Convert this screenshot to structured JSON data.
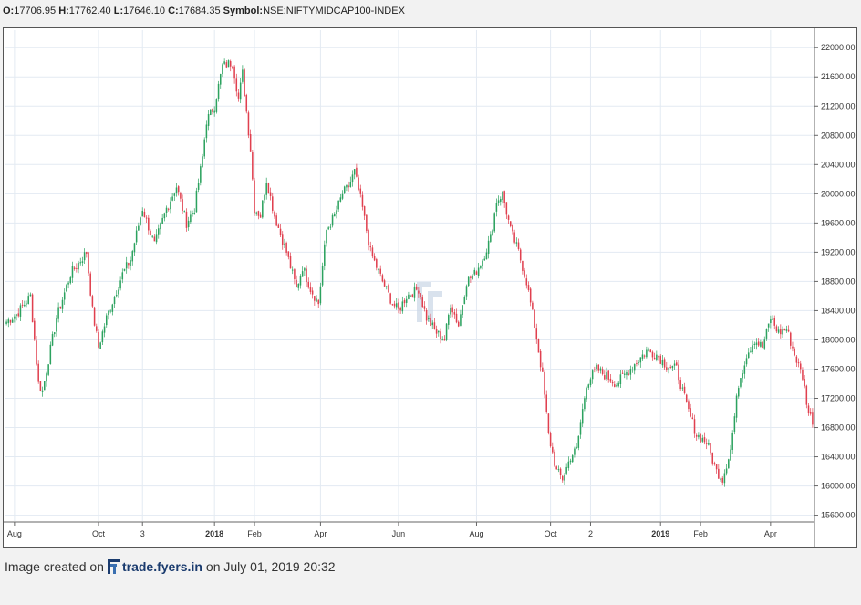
{
  "header": {
    "o_label": "O:",
    "o_value": "17706.95",
    "h_label": "H:",
    "h_value": "17762.40",
    "l_label": "L:",
    "l_value": "17646.10",
    "c_label": "C:",
    "c_value": "17684.35",
    "symbol_label": "Symbol:",
    "symbol_value": "NSE:NIFTYMIDCAP100-INDEX"
  },
  "footer": {
    "prefix": "Image created on",
    "brand": "trade.fyers.in",
    "suffix": "on July 01, 2019 20:32"
  },
  "colors": {
    "up": "#2ca25f",
    "down": "#e0404f",
    "grid": "#e3eaf2",
    "watermark": "#c9d6e6"
  },
  "chart_data": {
    "type": "candlestick",
    "title": "",
    "xlabel": "",
    "ylabel": "",
    "ylim": [
      15520,
      22240
    ],
    "y_ticks": [
      15600,
      16000,
      16400,
      16800,
      17200,
      17600,
      18000,
      18400,
      18800,
      19200,
      19600,
      20000,
      20400,
      20800,
      21200,
      21600,
      22000
    ],
    "y_tick_labels": [
      "15600.00",
      "16000.00",
      "16400.00",
      "16800.00",
      "17200.00",
      "17600.00",
      "18000.00",
      "18400.00",
      "18800.00",
      "19200.00",
      "19600.00",
      "20000.00",
      "20400.00",
      "20800.00",
      "21200.00",
      "21600.00",
      "22000.00"
    ],
    "x_ticks": [
      {
        "label": "Aug",
        "index": 4,
        "bold": false
      },
      {
        "label": "Oct",
        "index": 46,
        "bold": false
      },
      {
        "label": "3",
        "index": 68,
        "bold": false
      },
      {
        "label": "2018",
        "index": 104,
        "bold": true
      },
      {
        "label": "Feb",
        "index": 124,
        "bold": false
      },
      {
        "label": "Apr",
        "index": 157,
        "bold": false
      },
      {
        "label": "Jun",
        "index": 196,
        "bold": false
      },
      {
        "label": "Aug",
        "index": 235,
        "bold": false
      },
      {
        "label": "Oct",
        "index": 272,
        "bold": false
      },
      {
        "label": "2",
        "index": 292,
        "bold": false
      },
      {
        "label": "2019",
        "index": 327,
        "bold": true
      },
      {
        "label": "Feb",
        "index": 347,
        "bold": false
      },
      {
        "label": "Apr",
        "index": 382,
        "bold": false
      }
    ],
    "n_candles": 404,
    "anchors": [
      [
        0,
        18250
      ],
      [
        5,
        18350
      ],
      [
        12,
        18600
      ],
      [
        16,
        17400
      ],
      [
        18,
        17300
      ],
      [
        25,
        18300
      ],
      [
        32,
        18900
      ],
      [
        40,
        19200
      ],
      [
        43,
        18400
      ],
      [
        46,
        17900
      ],
      [
        50,
        18300
      ],
      [
        58,
        18900
      ],
      [
        62,
        19100
      ],
      [
        68,
        19800
      ],
      [
        74,
        19300
      ],
      [
        80,
        19800
      ],
      [
        85,
        20100
      ],
      [
        90,
        19600
      ],
      [
        94,
        19800
      ],
      [
        98,
        20500
      ],
      [
        100,
        21000
      ],
      [
        104,
        21200
      ],
      [
        108,
        21750
      ],
      [
        113,
        21800
      ],
      [
        116,
        21300
      ],
      [
        118,
        21650
      ],
      [
        122,
        20600
      ],
      [
        124,
        19800
      ],
      [
        127,
        19700
      ],
      [
        130,
        20200
      ],
      [
        134,
        19700
      ],
      [
        140,
        19200
      ],
      [
        145,
        18700
      ],
      [
        148,
        19000
      ],
      [
        152,
        18700
      ],
      [
        156,
        18500
      ],
      [
        160,
        19500
      ],
      [
        164,
        19700
      ],
      [
        168,
        20000
      ],
      [
        171,
        20100
      ],
      [
        174,
        20300
      ],
      [
        178,
        19800
      ],
      [
        182,
        19200
      ],
      [
        188,
        18800
      ],
      [
        193,
        18500
      ],
      [
        196,
        18400
      ],
      [
        200,
        18600
      ],
      [
        206,
        18700
      ],
      [
        210,
        18300
      ],
      [
        215,
        18100
      ],
      [
        219,
        18000
      ],
      [
        222,
        18500
      ],
      [
        226,
        18200
      ],
      [
        230,
        18800
      ],
      [
        234,
        18900
      ],
      [
        238,
        19100
      ],
      [
        242,
        19400
      ],
      [
        245,
        19900
      ],
      [
        248,
        20000
      ],
      [
        252,
        19500
      ],
      [
        256,
        19200
      ],
      [
        260,
        18800
      ],
      [
        264,
        18200
      ],
      [
        268,
        17500
      ],
      [
        271,
        16700
      ],
      [
        275,
        16200
      ],
      [
        278,
        16100
      ],
      [
        282,
        16400
      ],
      [
        285,
        16500
      ],
      [
        290,
        17400
      ],
      [
        295,
        17600
      ],
      [
        300,
        17500
      ],
      [
        305,
        17400
      ],
      [
        310,
        17550
      ],
      [
        315,
        17700
      ],
      [
        320,
        17850
      ],
      [
        325,
        17800
      ],
      [
        330,
        17650
      ],
      [
        335,
        17600
      ],
      [
        340,
        17100
      ],
      [
        345,
        16700
      ],
      [
        350,
        16600
      ],
      [
        355,
        16200
      ],
      [
        358,
        16100
      ],
      [
        362,
        16500
      ],
      [
        366,
        17400
      ],
      [
        370,
        17800
      ],
      [
        374,
        18000
      ],
      [
        378,
        17900
      ],
      [
        382,
        18300
      ],
      [
        386,
        18100
      ],
      [
        390,
        18150
      ],
      [
        394,
        17800
      ],
      [
        398,
        17500
      ],
      [
        401,
        17000
      ],
      [
        403,
        16900
      ]
    ]
  }
}
